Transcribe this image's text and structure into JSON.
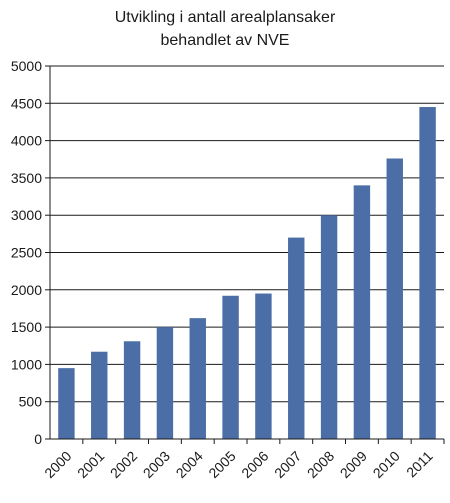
{
  "chart_data": {
    "type": "bar",
    "title_lines": [
      "Utvikling i antall arealplansaker",
      "behandlet av NVE"
    ],
    "categories": [
      "2000",
      "2001",
      "2002",
      "2003",
      "2004",
      "2005",
      "2006",
      "2007",
      "2008",
      "2009",
      "2010",
      "2011"
    ],
    "values": [
      950,
      1170,
      1310,
      1500,
      1620,
      1920,
      1950,
      2700,
      3000,
      3400,
      3760,
      4450
    ],
    "ylim": [
      0,
      5000
    ],
    "yticks": [
      "0",
      "500",
      "1000",
      "1500",
      "2000",
      "2500",
      "3000",
      "3500",
      "4000",
      "4500",
      "5000"
    ],
    "grid": true,
    "bar_color": "#4a6ea5",
    "grid_color": "#1a1a1a"
  }
}
